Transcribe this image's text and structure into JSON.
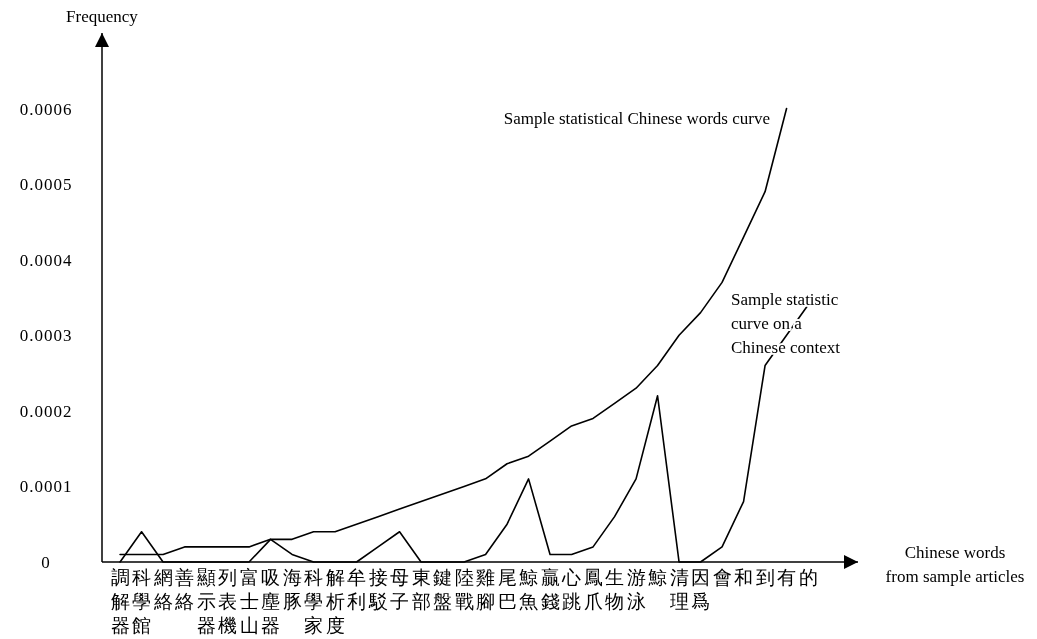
{
  "chart_data": {
    "type": "line",
    "ylabel": "Frequency",
    "xlabel": "Chinese words\nfrom sample articles",
    "categories": [
      "調解器",
      "科學館",
      "網絡",
      "善絡",
      "顯示器",
      "列表機",
      "富士山",
      "吸塵器",
      "海豚",
      "科學家",
      "解析度",
      "牟利",
      "接駁",
      "母子",
      "東部",
      "鍵盤",
      "陸戰",
      "雞腳",
      "尾巴",
      "鯨魚",
      "贏錢",
      "心跳",
      "鳳爪",
      "生物",
      "游泳",
      "鯨",
      "清理",
      "因爲",
      "會",
      "和",
      "到",
      "有",
      "的"
    ],
    "ylim": [
      0,
      0.0007
    ],
    "yticks": [
      0,
      0.0001,
      0.0002,
      0.0003,
      0.0004,
      0.0005,
      0.0006
    ],
    "marker": "none",
    "line_style": "solid",
    "series": [
      {
        "color": "#000000",
        "values": [
          1e-05,
          1e-05,
          1e-05,
          2e-05,
          2e-05,
          2e-05,
          2e-05,
          3e-05,
          3e-05,
          4e-05,
          4e-05,
          5e-05,
          6e-05,
          7e-05,
          8e-05,
          9e-05,
          0.0001,
          0.00011,
          0.00013,
          0.00014,
          0.00016,
          0.00018,
          0.00019,
          0.00021,
          0.00023,
          0.00026,
          0.0003,
          0.00033,
          0.00037,
          0.00043,
          0.00049,
          0.0006,
          null
        ]
      },
      {
        "color": "#000000",
        "values": [
          0,
          4e-05,
          0,
          0,
          0,
          0,
          0,
          3e-05,
          1e-05,
          0,
          0,
          0,
          2e-05,
          4e-05,
          0,
          0,
          0,
          1e-05,
          5e-05,
          0.00011,
          1e-05,
          1e-05,
          2e-05,
          6e-05,
          0.00011,
          0.00022,
          0,
          0,
          2e-05,
          8e-05,
          0.00026,
          0.0003,
          0.00034
        ]
      }
    ],
    "annotations": [
      "Sample statistical Chinese words curve",
      "Sample statistic\ncurve on a\nChinese context"
    ]
  }
}
